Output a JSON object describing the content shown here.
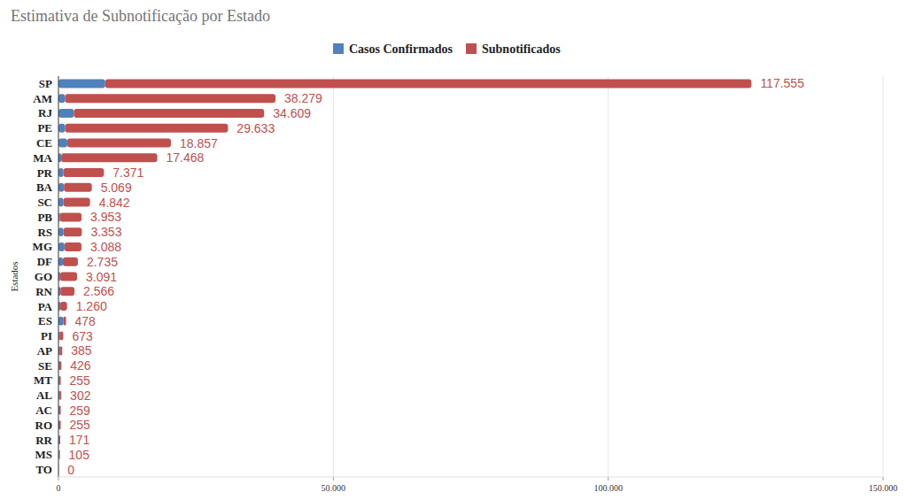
{
  "chart_data": {
    "type": "bar",
    "orientation": "horizontal",
    "stacked": true,
    "title": "Estimativa de Subnotificação por Estado",
    "y_label": "Estados",
    "categories": [
      "SP",
      "AM",
      "RJ",
      "PE",
      "CE",
      "MA",
      "PR",
      "BA",
      "SC",
      "PB",
      "RS",
      "MG",
      "DF",
      "GO",
      "RN",
      "PA",
      "ES",
      "PI",
      "AP",
      "SE",
      "MT",
      "AL",
      "AC",
      "RO",
      "RR",
      "MS",
      "TO"
    ],
    "series": [
      {
        "name": "Casos Confirmados",
        "color": "#4f81bd",
        "values": [
          8500,
          1200,
          2800,
          1200,
          1600,
          500,
          900,
          1000,
          900,
          250,
          900,
          1100,
          800,
          300,
          350,
          300,
          900,
          200,
          300,
          100,
          150,
          200,
          150,
          150,
          150,
          150,
          30
        ]
      },
      {
        "name": "Subnotificados",
        "color": "#c0504d",
        "values": [
          117555,
          38279,
          34609,
          29633,
          18857,
          17468,
          7371,
          5069,
          4842,
          3953,
          3353,
          3088,
          2735,
          3091,
          2566,
          1260,
          478,
          673,
          385,
          426,
          255,
          302,
          259,
          255,
          171,
          105,
          0
        ],
        "value_labels": [
          "117.555",
          "38.279",
          "34.609",
          "29.633",
          "18.857",
          "17.468",
          "7.371",
          "5.069",
          "4.842",
          "3.953",
          "3.353",
          "3.088",
          "2.735",
          "3.091",
          "2.566",
          "1.260",
          "478",
          "673",
          "385",
          "426",
          "255",
          "302",
          "259",
          "255",
          "171",
          "105",
          "0"
        ]
      }
    ],
    "xlim": [
      0,
      150000
    ],
    "xticks": [
      0,
      {
        "value": 50000,
        "label": "50.000"
      },
      {
        "value": 100000,
        "label": "100.000"
      },
      {
        "value": 150000,
        "label": "150.000"
      }
    ],
    "grid": true,
    "legend": "top",
    "data_labels": true
  }
}
